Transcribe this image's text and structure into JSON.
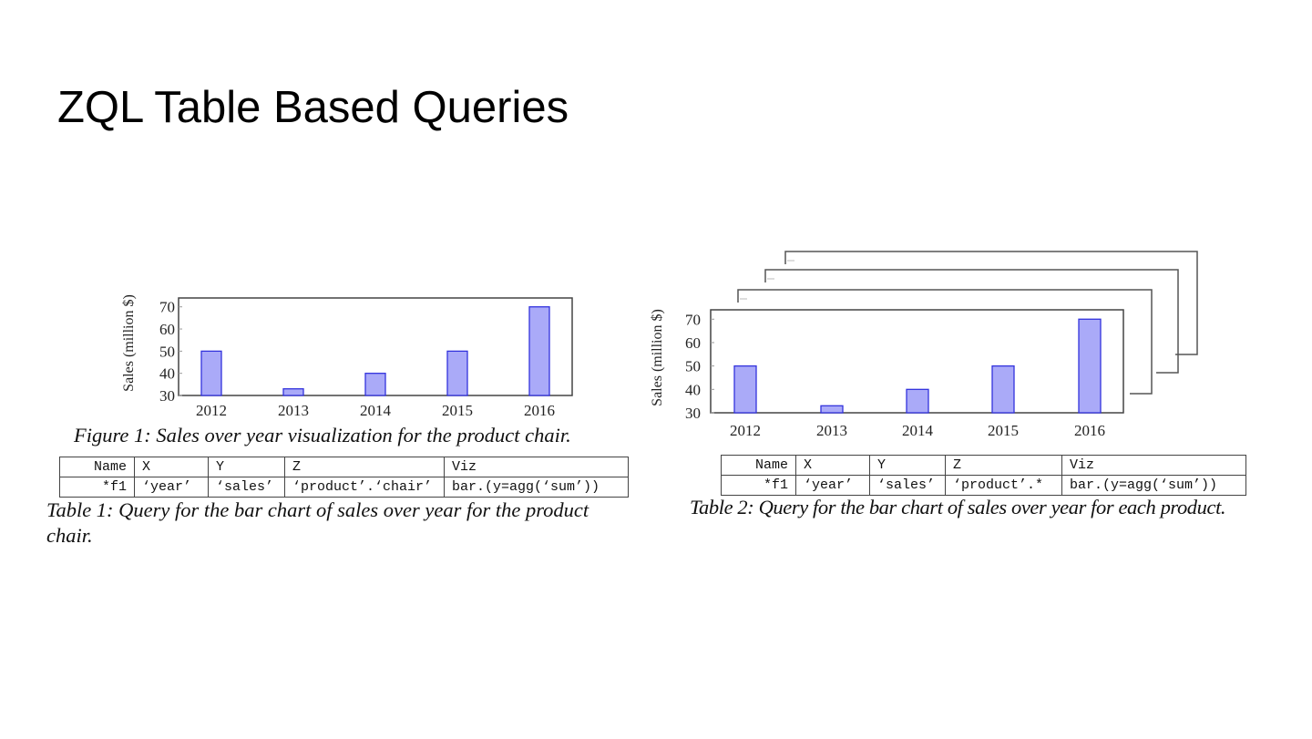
{
  "slide": {
    "title": "ZQL Table Based Queries"
  },
  "figure1": {
    "caption": "Figure 1: Sales over year visualization for the product chair."
  },
  "table1": {
    "headers": [
      "Name",
      "X",
      "Y",
      "Z",
      "Viz"
    ],
    "row": [
      "*f1",
      "‘year’",
      "‘sales’",
      "‘product’.‘chair’",
      "bar.(y=agg(‘sum’))"
    ],
    "caption_line1": "Table 1: Query for the bar chart of sales over year for the product",
    "caption_line2": "chair."
  },
  "table2": {
    "headers": [
      "Name",
      "X",
      "Y",
      "Z",
      "Viz"
    ],
    "row": [
      "*f1",
      "‘year’",
      "‘sales’",
      "‘product’.*",
      "bar.(y=agg(‘sum’))"
    ],
    "caption": "Table 2: Query for the bar chart of sales over year for each product."
  },
  "colors": {
    "bar_fill": "#aaaaf8",
    "bar_stroke": "#3333dd",
    "axis": "#444444"
  },
  "chart_data": [
    {
      "type": "bar",
      "categories": [
        "2012",
        "2013",
        "2014",
        "2015",
        "2016"
      ],
      "values": [
        50,
        33,
        40,
        50,
        70
      ],
      "ylabel": "Sales (million $)",
      "yticks": [
        "30",
        "40",
        "50",
        "60",
        "70"
      ],
      "ylim": [
        30,
        74
      ],
      "grid": false,
      "legend": "none"
    },
    {
      "type": "bar",
      "categories": [
        "2012",
        "2013",
        "2014",
        "2015",
        "2016"
      ],
      "values": [
        50,
        33,
        40,
        50,
        70
      ],
      "ylabel": "Sales (million $)",
      "yticks": [
        "30",
        "40",
        "50",
        "60",
        "70"
      ],
      "ylim": [
        30,
        74
      ],
      "grid": false,
      "legend": "none",
      "stacked_copies_behind": 3
    }
  ]
}
